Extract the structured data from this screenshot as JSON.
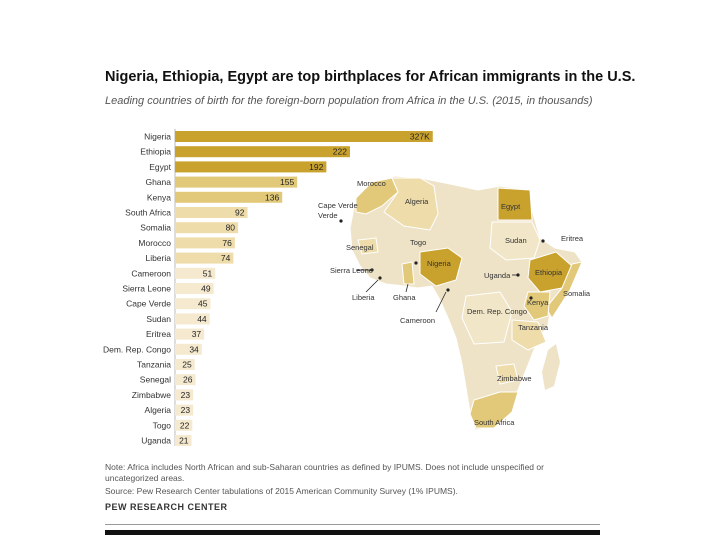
{
  "title": "Nigeria, Ethiopia, Egypt are top birthplaces for African immigrants in the U.S.",
  "subtitle": "Leading countries of birth for the foreign-born population from Africa in the U.S. (2015, in thousands)",
  "note": "Note: Africa includes North African and sub-Saharan countries as defined by IPUMS. Does not include unspecified or uncategorized areas.",
  "source": "Source: Pew Research Center tabulations of 2015 American Community Survey (1% IPUMS).",
  "credit": "PEW RESEARCH CENTER",
  "colors": {
    "bar_top": "#c9a22e",
    "bar_mid": "#e2c979",
    "bar_low": "#eedcab",
    "bar_faint": "#f5ead0",
    "map_base": "#efe3c7"
  },
  "chart_data": {
    "type": "bar",
    "orientation": "horizontal",
    "title": "Nigeria, Ethiopia, Egypt are top birthplaces for African immigrants in the U.S.",
    "unit": "thousands",
    "categories": [
      "Nigeria",
      "Ethiopia",
      "Egypt",
      "Ghana",
      "Kenya",
      "South Africa",
      "Somalia",
      "Morocco",
      "Liberia",
      "Cameroon",
      "Sierra Leone",
      "Cape Verde",
      "Sudan",
      "Eritrea",
      "Dem. Rep. Congo",
      "Tanzania",
      "Senegal",
      "Zimbabwe",
      "Algeria",
      "Togo",
      "Uganda"
    ],
    "values": [
      327,
      222,
      192,
      155,
      136,
      92,
      80,
      76,
      74,
      51,
      49,
      45,
      44,
      37,
      34,
      25,
      26,
      23,
      23,
      22,
      21
    ],
    "value_labels": [
      "327K",
      "222",
      "192",
      "155",
      "136",
      "92",
      "80",
      "76",
      "74",
      "51",
      "49",
      "45",
      "44",
      "37",
      "34",
      "25",
      "26",
      "23",
      "23",
      "22",
      "21"
    ],
    "xlim": [
      0,
      340
    ]
  },
  "map": {
    "labels": [
      "Morocco",
      "Algeria",
      "Egypt",
      "Cape Verde",
      "Senegal",
      "Togo",
      "Nigeria",
      "Sudan",
      "Eritrea",
      "Sierra Leone",
      "Liberia",
      "Ghana",
      "Ethiopia",
      "Uganda",
      "Somalia",
      "Kenya",
      "Cameroon",
      "Dem. Rep. Congo",
      "Tanzania",
      "Zimbabwe",
      "South Africa"
    ]
  }
}
